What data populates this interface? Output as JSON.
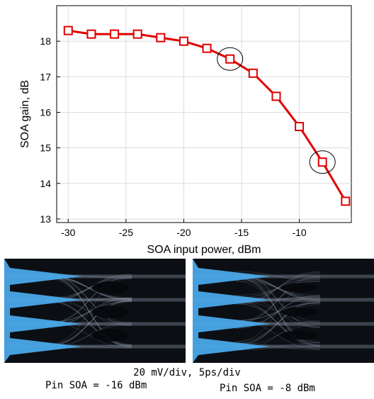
{
  "chart_data": {
    "type": "line",
    "xlabel": "SOA input power, dBm",
    "ylabel": "SOA gain, dB",
    "xlim": [
      -31,
      -5.5
    ],
    "ylim": [
      12.9,
      19.0
    ],
    "xticks": [
      -30,
      -25,
      -20,
      -15,
      -10
    ],
    "yticks": [
      13,
      14,
      15,
      16,
      17,
      18
    ],
    "grid": true,
    "marker": "square",
    "line_color": "#e00000",
    "x": [
      -30,
      -28,
      -26,
      -24,
      -22,
      -20,
      -18,
      -16,
      -14,
      -12,
      -10,
      -8,
      -6
    ],
    "y": [
      18.3,
      18.2,
      18.2,
      18.2,
      18.1,
      18.0,
      17.8,
      17.5,
      17.1,
      16.45,
      15.6,
      14.6,
      13.5
    ],
    "highlighted_points": [
      {
        "x": -16,
        "y": 17.5
      },
      {
        "x": -8,
        "y": 14.6
      }
    ]
  },
  "eye_diagrams": {
    "scale_caption": "20 mV/div, 5ps/div",
    "left_caption": "Pin SOA = -16 dBm",
    "right_caption": "Pin SOA = -8 dBm",
    "background_color": "#0b0f14",
    "trace_color": "#9aa8b8",
    "histogram_color": "#4aa8e8"
  }
}
